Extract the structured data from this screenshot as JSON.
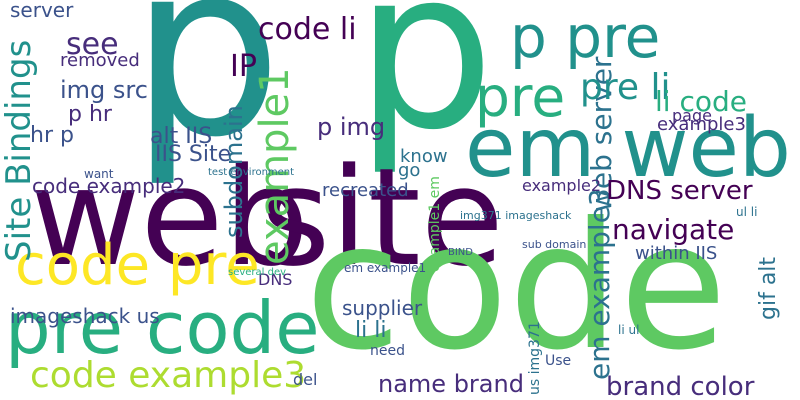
{
  "words": {
    "p1": "p",
    "p2": "p",
    "web": "web",
    "site": "site",
    "code": "code",
    "em_web": "em web",
    "pre1": "pre",
    "p_pre": "p pre",
    "pre_code": "pre code",
    "code_pre": "code pre",
    "example1": "example1",
    "site_bindings": "Site Bindings",
    "em_example3": "em example3",
    "web_server": "web server",
    "dns_server": "DNS server",
    "navigate": "navigate",
    "code_example3": "code example3",
    "name_brand": "name brand",
    "brand_color": "brand color",
    "code_li": "code li",
    "li_code": "li code",
    "pre_li": "pre li",
    "p_img": "p img",
    "see": "see",
    "ip": "IP",
    "img_src": "img src",
    "p_hr": "p hr",
    "hr_p": "hr p",
    "alt_iis": "alt IIS",
    "iis_site": "IIS Site",
    "subdomain": "subdomain",
    "example3": "example3",
    "code_example2": "code example2",
    "example2": "example2",
    "within_iis": "within IIS",
    "gif_alt": "gif alt",
    "imageshack_us": "imageshack us",
    "supplier": "supplier",
    "li_li": "li li",
    "server": "server",
    "removed": "removed",
    "recreated": "recreated",
    "page": "page",
    "know": "know",
    "go": "go",
    "img371_imageshack": "img371 imageshack",
    "us_img371": "us img371",
    "dns": "DNS",
    "del": "del",
    "use": "Use",
    "em_example1": "em example1",
    "sub_domain": "sub domain",
    "example1_em": "example1 em",
    "test_environment": "test environment",
    "bind": "BIND",
    "want": "want",
    "need": "need",
    "li_ul": "li ul",
    "ul_li": "ul li",
    "several_dev": "several dev"
  }
}
